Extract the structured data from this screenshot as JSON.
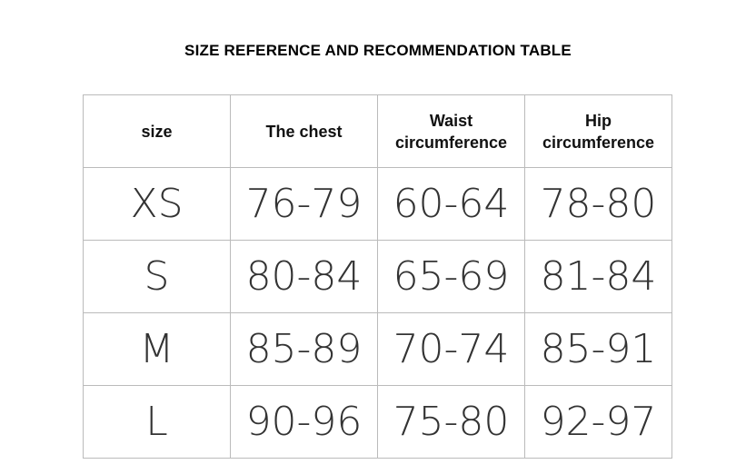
{
  "title": "SIZE REFERENCE AND RECOMMENDATION TABLE",
  "table": {
    "header": [
      "size",
      "The chest",
      "Waist\ncircumference",
      "Hip\ncircumference"
    ],
    "rows": [
      [
        "XS",
        "76-79",
        "60-64",
        "78-80"
      ],
      [
        "S",
        "80-84",
        "65-69",
        "81-84"
      ],
      [
        "M",
        "85-89",
        "70-74",
        "85-91"
      ],
      [
        "L",
        "90-96",
        "75-80",
        "92-97"
      ]
    ]
  }
}
